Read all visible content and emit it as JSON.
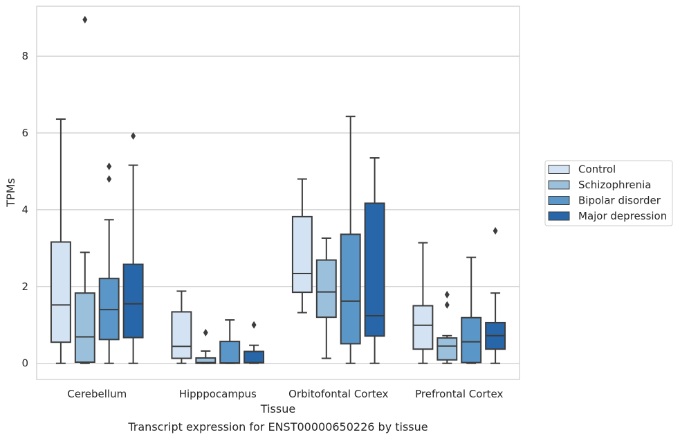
{
  "chart_data": {
    "type": "boxplot",
    "title": "",
    "caption": "Transcript expression for ENST00000650226 by tissue",
    "xlabel": "Tissue",
    "ylabel": "TPMs",
    "ylim": [
      -0.42,
      9.3
    ],
    "yticks": [
      0,
      2,
      4,
      6,
      8
    ],
    "grid": "horizontal",
    "legend_position": "right",
    "categories": [
      "Cerebellum",
      "Hipppocampus",
      "Orbitofontal Cortex",
      "Prefrontal Cortex"
    ],
    "series": [
      {
        "name": "Control",
        "color": "#d3e3f3",
        "boxes": [
          {
            "whislo": 0.0,
            "q1": 0.55,
            "median": 1.52,
            "q3": 3.16,
            "whishi": 6.36,
            "fliers": []
          },
          {
            "whislo": 0.0,
            "q1": 0.13,
            "median": 0.44,
            "q3": 1.34,
            "whishi": 1.88,
            "fliers": []
          },
          {
            "whislo": 1.32,
            "q1": 1.85,
            "median": 2.34,
            "q3": 3.82,
            "whishi": 4.8,
            "fliers": []
          },
          {
            "whislo": 0.0,
            "q1": 0.37,
            "median": 0.99,
            "q3": 1.5,
            "whishi": 3.14,
            "fliers": []
          }
        ]
      },
      {
        "name": "Schizophrenia",
        "color": "#9ac0dc",
        "boxes": [
          {
            "whislo": 0.0,
            "q1": 0.03,
            "median": 0.69,
            "q3": 1.83,
            "whishi": 2.89,
            "fliers": [
              8.95
            ]
          },
          {
            "whislo": 0.0,
            "q1": 0.0,
            "median": 0.02,
            "q3": 0.14,
            "whishi": 0.32,
            "fliers": [
              0.8
            ]
          },
          {
            "whislo": 0.13,
            "q1": 1.2,
            "median": 1.86,
            "q3": 2.69,
            "whishi": 3.26,
            "fliers": []
          },
          {
            "whislo": 0.0,
            "q1": 0.09,
            "median": 0.45,
            "q3": 0.66,
            "whishi": 0.72,
            "fliers": [
              1.52,
              1.79
            ]
          }
        ]
      },
      {
        "name": "Bipolar disorder",
        "color": "#5a96c7",
        "boxes": [
          {
            "whislo": 0.0,
            "q1": 0.62,
            "median": 1.4,
            "q3": 2.21,
            "whishi": 3.74,
            "fliers": [
              4.8,
              5.13
            ]
          },
          {
            "whislo": 0.0,
            "q1": 0.0,
            "median": 0.01,
            "q3": 0.57,
            "whishi": 1.13,
            "fliers": []
          },
          {
            "whislo": 0.0,
            "q1": 0.51,
            "median": 1.62,
            "q3": 3.36,
            "whishi": 6.43,
            "fliers": []
          },
          {
            "whislo": 0.0,
            "q1": 0.02,
            "median": 0.56,
            "q3": 1.19,
            "whishi": 2.76,
            "fliers": []
          }
        ]
      },
      {
        "name": "Major depression",
        "color": "#2766a8",
        "boxes": [
          {
            "whislo": 0.0,
            "q1": 0.67,
            "median": 1.55,
            "q3": 2.58,
            "whishi": 5.16,
            "fliers": [
              5.92
            ]
          },
          {
            "whislo": 0.0,
            "q1": 0.01,
            "median": 0.02,
            "q3": 0.31,
            "whishi": 0.47,
            "fliers": [
              1.0
            ]
          },
          {
            "whislo": 0.0,
            "q1": 0.71,
            "median": 1.24,
            "q3": 4.17,
            "whishi": 5.35,
            "fliers": []
          },
          {
            "whislo": 0.0,
            "q1": 0.37,
            "median": 0.72,
            "q3": 1.06,
            "whishi": 1.83,
            "fliers": [
              3.45
            ]
          }
        ]
      }
    ]
  }
}
